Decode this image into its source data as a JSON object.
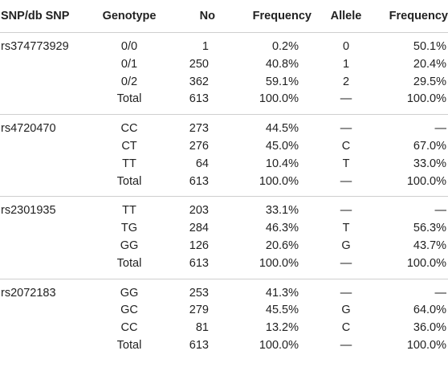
{
  "headers": [
    "SNP/db SNP",
    "Genotype",
    "No",
    "Frequency",
    "Allele",
    "Frequency"
  ],
  "groups": [
    {
      "snp": "rs374773929",
      "rows": [
        {
          "genotype": "0/0",
          "no": "1",
          "freq": "0.2%",
          "allele": "0",
          "afreq": "50.1%"
        },
        {
          "genotype": "0/1",
          "no": "250",
          "freq": "40.8%",
          "allele": "1",
          "afreq": "20.4%"
        },
        {
          "genotype": "0/2",
          "no": "362",
          "freq": "59.1%",
          "allele": "2",
          "afreq": "29.5%"
        },
        {
          "genotype": "Total",
          "no": "613",
          "freq": "100.0%",
          "allele": "—",
          "afreq": "100.0%"
        }
      ]
    },
    {
      "snp": "rs4720470",
      "rows": [
        {
          "genotype": "CC",
          "no": "273",
          "freq": "44.5%",
          "allele": "—",
          "afreq": "—"
        },
        {
          "genotype": "CT",
          "no": "276",
          "freq": "45.0%",
          "allele": "C",
          "afreq": "67.0%"
        },
        {
          "genotype": "TT",
          "no": "64",
          "freq": "10.4%",
          "allele": "T",
          "afreq": "33.0%"
        },
        {
          "genotype": "Total",
          "no": "613",
          "freq": "100.0%",
          "allele": "—",
          "afreq": "100.0%"
        }
      ]
    },
    {
      "snp": "rs2301935",
      "rows": [
        {
          "genotype": "TT",
          "no": "203",
          "freq": "33.1%",
          "allele": "—",
          "afreq": "—"
        },
        {
          "genotype": "TG",
          "no": "284",
          "freq": "46.3%",
          "allele": "T",
          "afreq": "56.3%"
        },
        {
          "genotype": "GG",
          "no": "126",
          "freq": "20.6%",
          "allele": "G",
          "afreq": "43.7%"
        },
        {
          "genotype": "Total",
          "no": "613",
          "freq": "100.0%",
          "allele": "—",
          "afreq": "100.0%"
        }
      ]
    },
    {
      "snp": "rs2072183",
      "rows": [
        {
          "genotype": "GG",
          "no": "253",
          "freq": "41.3%",
          "allele": "—",
          "afreq": "—"
        },
        {
          "genotype": "GC",
          "no": "279",
          "freq": "45.5%",
          "allele": "G",
          "afreq": "64.0%"
        },
        {
          "genotype": "CC",
          "no": "81",
          "freq": "13.2%",
          "allele": "C",
          "afreq": "36.0%"
        },
        {
          "genotype": "Total",
          "no": "613",
          "freq": "100.0%",
          "allele": "—",
          "afreq": "100.0%"
        }
      ]
    }
  ]
}
